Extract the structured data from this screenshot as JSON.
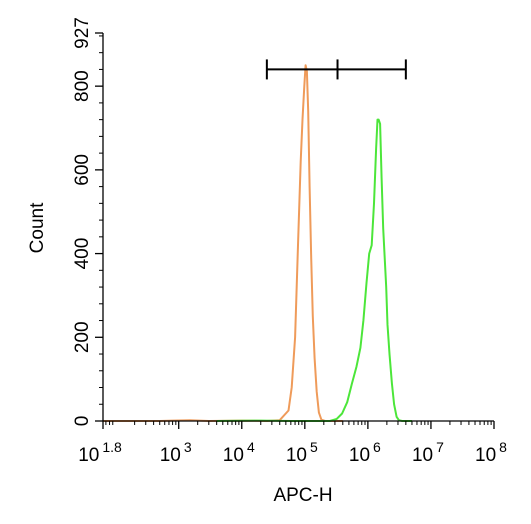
{
  "chart_data": {
    "type": "histogram",
    "xlabel": "APC-H",
    "ylabel": "Count",
    "x_scale": "log",
    "xlim": [
      63,
      100000000
    ],
    "ylim": [
      0,
      927
    ],
    "x_ticks": [
      {
        "value": 63,
        "base": "10",
        "exp": "1.8"
      },
      {
        "value": 1000,
        "base": "10",
        "exp": "3"
      },
      {
        "value": 10000,
        "base": "10",
        "exp": "4"
      },
      {
        "value": 100000,
        "base": "10",
        "exp": "5"
      },
      {
        "value": 1000000,
        "base": "10",
        "exp": "6"
      },
      {
        "value": 10000000,
        "base": "10",
        "exp": "7"
      },
      {
        "value": 100000000,
        "base": "10",
        "exp": "8"
      }
    ],
    "y_ticks": [
      0,
      200,
      400,
      600,
      800,
      927
    ],
    "series": [
      {
        "color": "#ef9b5a",
        "points": [
          [
            63,
            0
          ],
          [
            500,
            0
          ],
          [
            800,
            1
          ],
          [
            1500,
            2
          ],
          [
            3000,
            0
          ],
          [
            10000,
            1
          ],
          [
            25000,
            0
          ],
          [
            40000,
            2
          ],
          [
            55000,
            25
          ],
          [
            62000,
            80
          ],
          [
            70000,
            200
          ],
          [
            78000,
            420
          ],
          [
            86000,
            620
          ],
          [
            92000,
            720
          ],
          [
            98000,
            800
          ],
          [
            103000,
            850
          ],
          [
            108000,
            835
          ],
          [
            113000,
            740
          ],
          [
            119000,
            560
          ],
          [
            126000,
            390
          ],
          [
            134000,
            250
          ],
          [
            143000,
            150
          ],
          [
            154000,
            70
          ],
          [
            167000,
            20
          ],
          [
            183000,
            3
          ],
          [
            210000,
            0
          ],
          [
            400000,
            0
          ]
        ]
      },
      {
        "color": "#4ce63a",
        "points": [
          [
            4000,
            0
          ],
          [
            20000,
            1
          ],
          [
            60000,
            0
          ],
          [
            250000,
            0
          ],
          [
            320000,
            5
          ],
          [
            390000,
            18
          ],
          [
            470000,
            45
          ],
          [
            560000,
            90
          ],
          [
            660000,
            130
          ],
          [
            760000,
            175
          ],
          [
            850000,
            240
          ],
          [
            950000,
            330
          ],
          [
            1050000,
            400
          ],
          [
            1150000,
            420
          ],
          [
            1250000,
            520
          ],
          [
            1350000,
            650
          ],
          [
            1420000,
            720
          ],
          [
            1480000,
            720
          ],
          [
            1560000,
            710
          ],
          [
            1650000,
            580
          ],
          [
            1750000,
            460
          ],
          [
            1850000,
            390
          ],
          [
            1950000,
            320
          ],
          [
            2050000,
            230
          ],
          [
            2200000,
            160
          ],
          [
            2400000,
            90
          ],
          [
            2600000,
            40
          ],
          [
            2850000,
            10
          ],
          [
            3100000,
            2
          ],
          [
            3500000,
            0
          ],
          [
            5000000,
            0
          ]
        ]
      }
    ],
    "gate": {
      "left": 25000,
      "middle": 330000,
      "right": 4000000,
      "count": 840
    }
  }
}
